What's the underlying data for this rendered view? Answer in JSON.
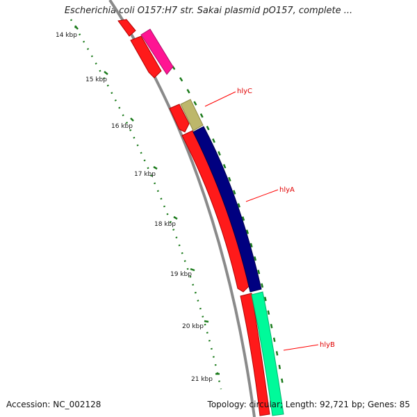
{
  "title": "Escherichia coli O157:H7 str. Sakai plasmid pO157, complete ...",
  "footer": {
    "accession": "Accession: NC_002128",
    "topology": "Topology: circular; Length: 92,721 bp; Genes: 85"
  },
  "ticks": [
    "14 kbp",
    "15 kbp",
    "16 kbp",
    "17 kbp",
    "18 kbp",
    "19 kbp",
    "20 kbp",
    "21 kbp"
  ],
  "gene_labels": [
    "hlyC",
    "hlyA",
    "hlyB"
  ],
  "colors": {
    "backbone": "#8a8a8a",
    "forward_cds": "#ff1a1a",
    "pink_cds": "#ff1493",
    "hlyC": "#bdb76b",
    "hlyA": "#000080",
    "hlyB": "#00fa9a",
    "tick": "#1a7a1a",
    "label_line": "#ff0000"
  }
}
